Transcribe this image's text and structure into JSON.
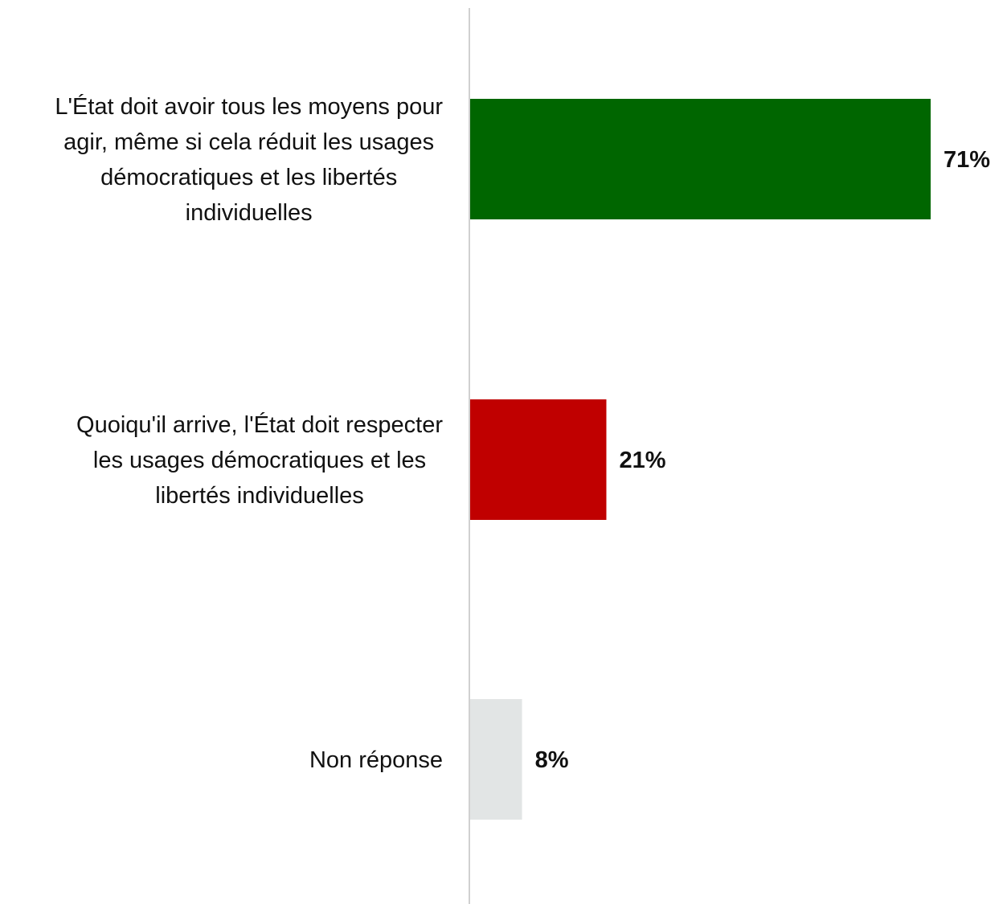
{
  "chart_data": {
    "type": "bar",
    "orientation": "horizontal",
    "categories": [
      "L'État doit avoir tous les moyens pour agir, même si cela réduit les usages démocratiques et les libertés individuelles",
      "Quoiqu'il arrive, l'État doit respecter les usages démocratiques et les libertés individuelles",
      "Non réponse"
    ],
    "category_lines": [
      [
        "L'État doit avoir tous les moyens pour",
        "agir, même si cela réduit les usages",
        "démocratiques et les libertés",
        "individuelles"
      ],
      [
        "Quoiqu'il arrive, l'État doit respecter",
        "les usages démocratiques et les",
        "libertés individuelles"
      ],
      [
        "Non réponse"
      ]
    ],
    "values": [
      71,
      21,
      8
    ],
    "value_labels": [
      "71%",
      "21%",
      "8%"
    ],
    "colors": [
      "#006600",
      "#c00000",
      "#e2e5e5"
    ],
    "xlim": [
      0,
      71
    ],
    "title": "",
    "xlabel": "",
    "ylabel": "",
    "grid": false,
    "legend": "none"
  }
}
